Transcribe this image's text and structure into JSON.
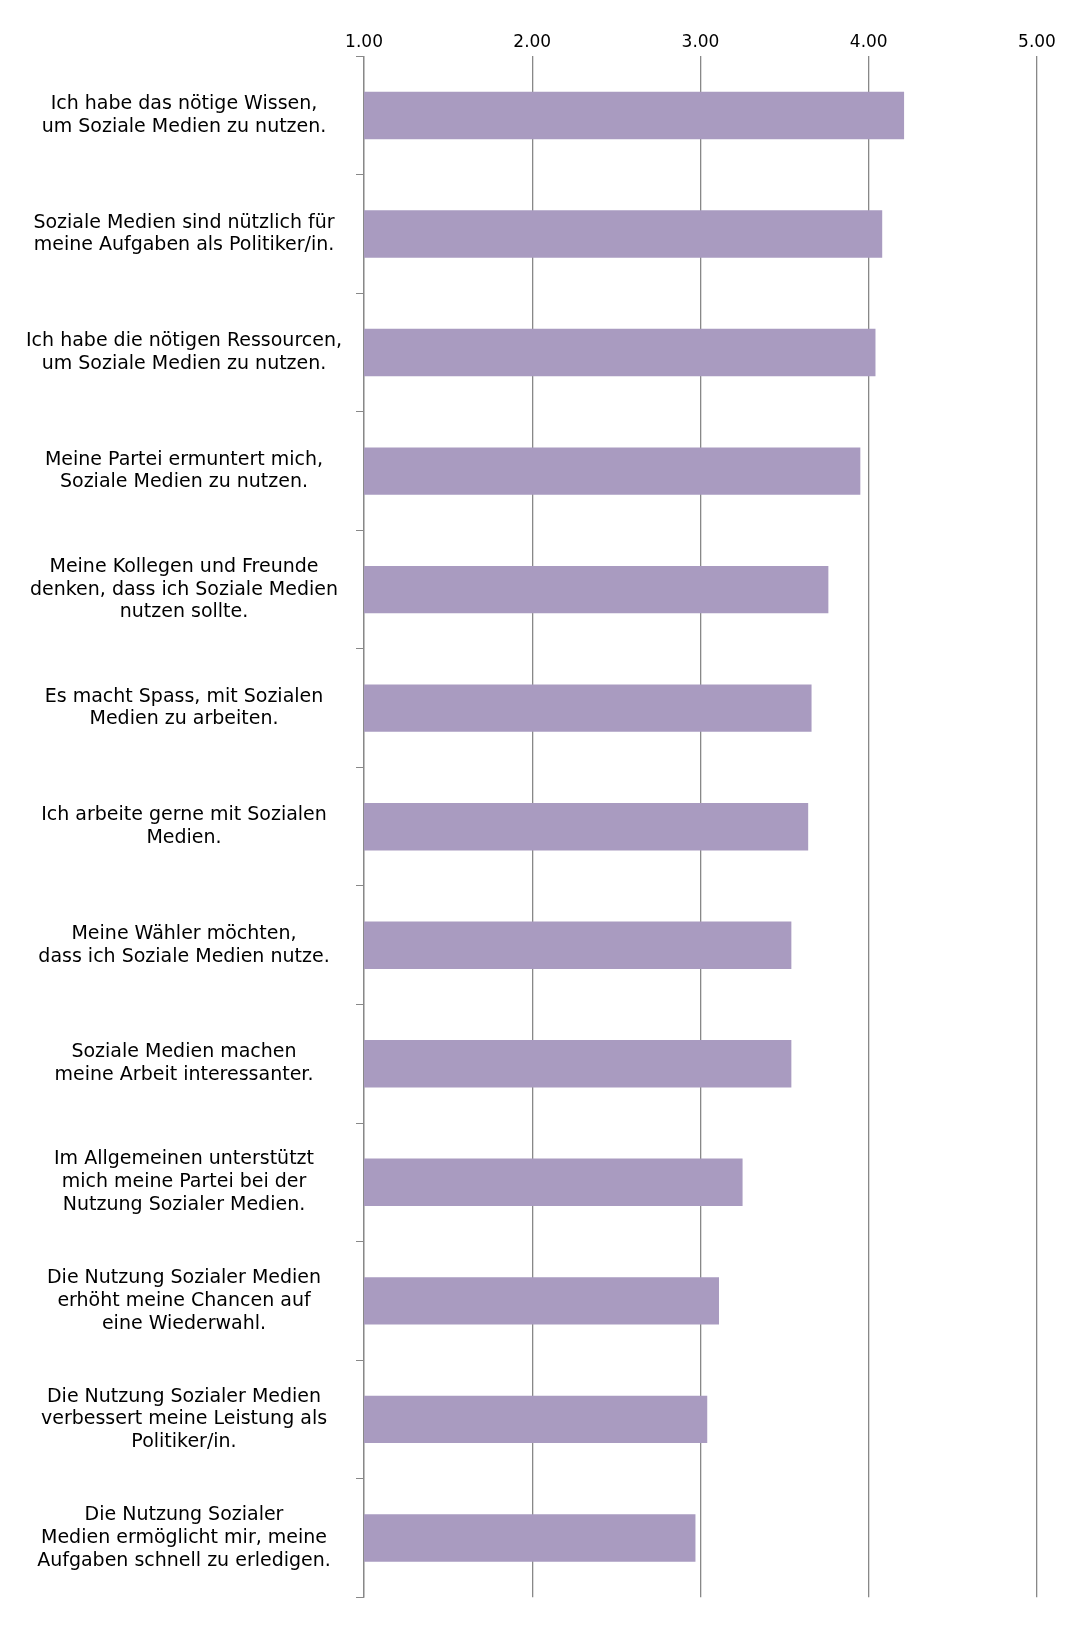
{
  "chart_data": {
    "type": "bar",
    "orientation": "horizontal",
    "categories": [
      "Ich habe das nötige Wissen,\num Soziale Medien zu nutzen.",
      "Soziale Medien sind nützlich für\nmeine Aufgaben als Politiker/in.",
      "Ich habe die nötigen Ressourcen,\num Soziale Medien zu nutzen.",
      "Meine Partei ermuntert mich,\nSoziale Medien zu nutzen.",
      "Meine Kollegen und Freunde\ndenken, dass ich Soziale Medien\nnutzen sollte.",
      "Es macht Spass, mit Sozialen\nMedien zu arbeiten.",
      "Ich arbeite gerne mit Sozialen\nMedien.",
      "Meine Wähler möchten,\ndass ich Soziale Medien nutze.",
      "Soziale Medien machen\nmeine Arbeit interessanter.",
      "Im Allgemeinen unterstützt\nmich meine Partei bei der\nNutzung Sozialer Medien.",
      "Die Nutzung Sozialer Medien\nerhöht meine Chancen auf\neine Wiederwahl.",
      "Die Nutzung Sozialer Medien\nverbessert meine Leistung als\nPolitiker/in.",
      "Die Nutzung Sozialer\nMedien ermöglicht mir, meine\nAufgaben schnell zu erledigen."
    ],
    "values": [
      4.21,
      4.08,
      4.04,
      3.95,
      3.76,
      3.66,
      3.64,
      3.54,
      3.54,
      3.25,
      3.11,
      3.04,
      2.97
    ],
    "color": "#a99bc0",
    "xlim": [
      1,
      5
    ],
    "xticks": [
      {
        "value": 1,
        "label": "1.00"
      },
      {
        "value": 2,
        "label": "2.00"
      },
      {
        "value": 3,
        "label": "3.00"
      },
      {
        "value": 4,
        "label": "4.00"
      },
      {
        "value": 5,
        "label": "5.00"
      }
    ],
    "grid": "x",
    "legend": false
  }
}
